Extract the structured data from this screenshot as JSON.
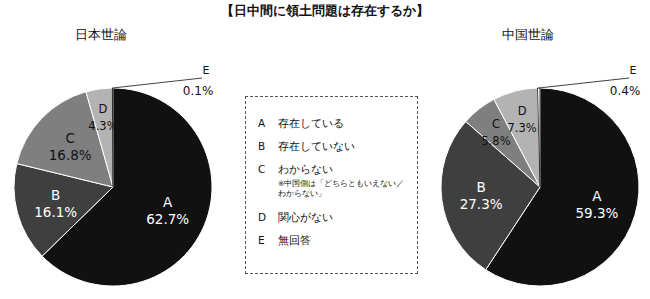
{
  "title": "【日中間に領土問題は存在するか】",
  "legend": {
    "labels": [
      "存在している",
      "存在していない",
      "わからない",
      "関心がない",
      "無回答"
    ],
    "note": "※中国側は「どちらともいえない／わからない」"
  },
  "chart_data": [
    {
      "type": "pie",
      "title": "日本世論",
      "categories": [
        "A",
        "B",
        "C",
        "D",
        "E"
      ],
      "values": [
        62.7,
        16.1,
        16.8,
        4.3,
        0.1
      ],
      "value_labels": [
        "62.7%",
        "16.1%",
        "16.8%",
        "4.3%",
        "0.1%"
      ],
      "colors": [
        "#111111",
        "#3f3f3f",
        "#7f7f7f",
        "#b3b3b3",
        "#ffffff"
      ],
      "data_labels": true
    },
    {
      "type": "pie",
      "title": "中国世論",
      "categories": [
        "A",
        "B",
        "C",
        "D",
        "E"
      ],
      "values": [
        59.3,
        27.3,
        5.8,
        7.3,
        0.4
      ],
      "value_labels": [
        "59.3%",
        "27.3%",
        "5.8%",
        "7.3%",
        "0.4%"
      ],
      "colors": [
        "#111111",
        "#3f3f3f",
        "#7f7f7f",
        "#b3b3b3",
        "#ffffff"
      ],
      "data_labels": true
    }
  ]
}
